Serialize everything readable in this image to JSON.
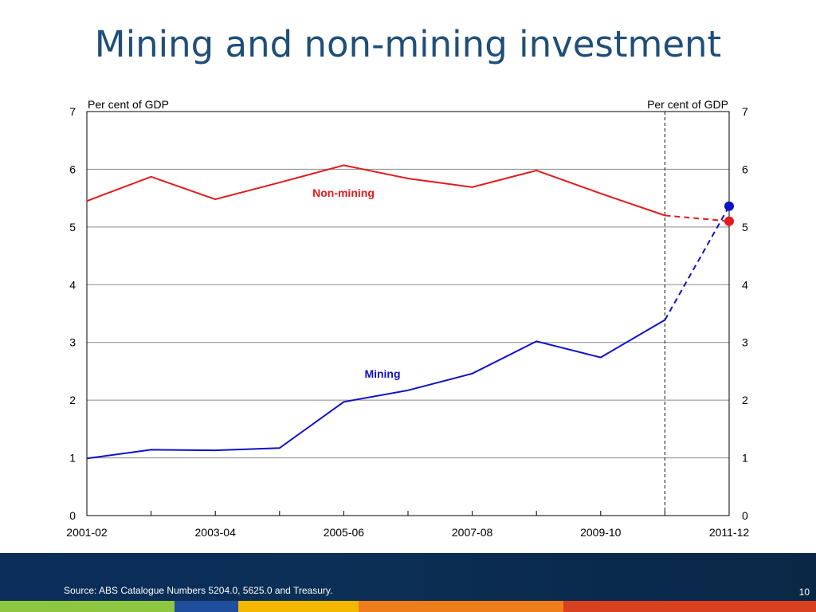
{
  "slide": {
    "title": "Mining and non-mining investment",
    "source": "Source: ABS Catalogue Numbers 5204.0, 5625.0 and Treasury.",
    "page_number": "10"
  },
  "colors": {
    "title": "#1f4e79",
    "non_mining": "#e31b1b",
    "mining": "#1010c8",
    "footer": "#0b2f56",
    "strip": [
      "#8dc63f",
      "#1f4e9c",
      "#f5b800",
      "#ee7d1a",
      "#d8401f"
    ]
  },
  "chart_data": {
    "type": "line",
    "title": "",
    "left_axis_label": "Per cent of GDP",
    "right_axis_label": "Per cent of GDP",
    "ylim": [
      0,
      7
    ],
    "y_ticks": [
      "0",
      "1",
      "2",
      "3",
      "4",
      "5",
      "6",
      "7"
    ],
    "x": [
      "2001-02",
      "2002-03",
      "2003-04",
      "2004-05",
      "2005-06",
      "2006-07",
      "2007-08",
      "2008-09",
      "2009-10",
      "2010-11",
      "2011-12"
    ],
    "x_tick_labels": [
      "2001-02",
      "2003-04",
      "2005-06",
      "2007-08",
      "2009-10",
      "2011-12"
    ],
    "forecast_start": "2010-11",
    "grid": true,
    "series": [
      {
        "name": "Non-mining",
        "values": [
          5.45,
          5.87,
          5.48,
          5.77,
          6.07,
          5.84,
          5.69,
          5.98,
          5.58,
          5.2,
          5.1
        ]
      },
      {
        "name": "Mining",
        "values": [
          0.99,
          1.14,
          1.13,
          1.17,
          1.97,
          2.17,
          2.46,
          3.02,
          2.74,
          3.39,
          5.36
        ]
      }
    ]
  }
}
